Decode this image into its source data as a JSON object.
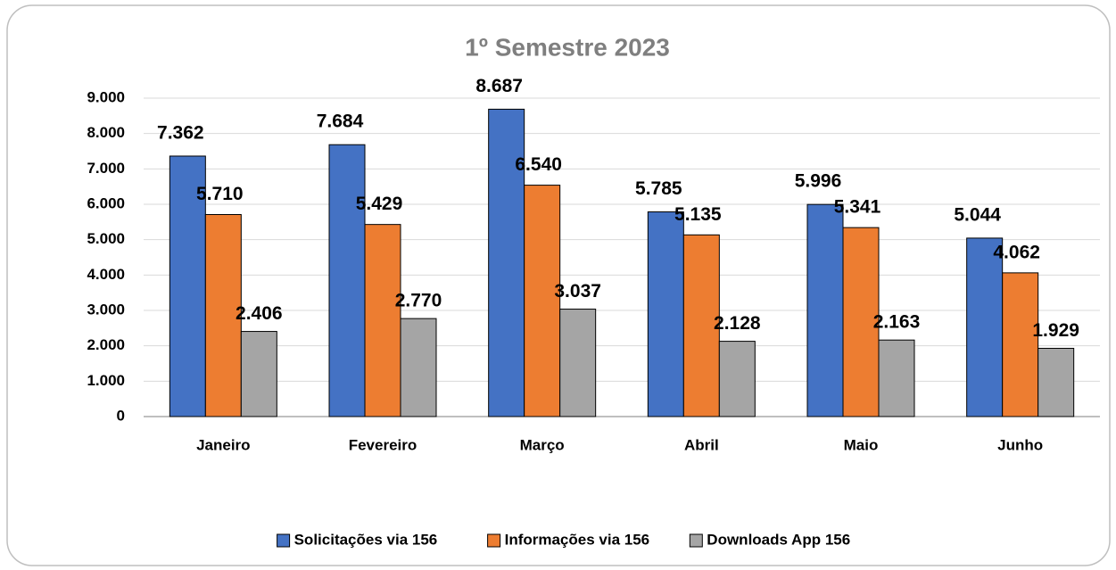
{
  "chart_data": {
    "type": "bar",
    "title": "1º Semestre 2023",
    "categories": [
      "Janeiro",
      "Fevereiro",
      "Março",
      "Abril",
      "Maio",
      "Junho"
    ],
    "series": [
      {
        "name": "Solicitações via 156",
        "color": "#4472c4",
        "values": [
          7362,
          7684,
          8687,
          5785,
          5996,
          5044
        ],
        "value_labels": [
          "7.362",
          "7.684",
          "8.687",
          "5.785",
          "5.996",
          "5.044"
        ]
      },
      {
        "name": "Informações via 156",
        "color": "#ed7d31",
        "values": [
          5710,
          5429,
          6540,
          5135,
          5341,
          4062
        ],
        "value_labels": [
          "5.710",
          "5.429",
          "6.540",
          "5.135",
          "5.341",
          "4.062"
        ]
      },
      {
        "name": "Downloads App 156",
        "color": "#a5a5a5",
        "values": [
          2406,
          2770,
          3037,
          2128,
          2163,
          1929
        ],
        "value_labels": [
          "2.406",
          "2.770",
          "3.037",
          "2.128",
          "2.163",
          "1.929"
        ]
      }
    ],
    "ylim": [
      0,
      9000
    ],
    "yticks": [
      0,
      {
        "value": 1000,
        "label": "1.000"
      },
      {
        "value": 2000,
        "label": "2.000"
      },
      {
        "value": 3000,
        "label": "3.000"
      },
      {
        "value": 4000,
        "label": "4.000"
      },
      {
        "value": 5000,
        "label": "5.000"
      },
      {
        "value": 6000,
        "label": "6.000"
      },
      {
        "value": 7000,
        "label": "7.000"
      },
      {
        "value": 8000,
        "label": "8.000"
      },
      {
        "value": 9000,
        "label": "9.000"
      }
    ],
    "grid": true,
    "legend": "bottom"
  }
}
